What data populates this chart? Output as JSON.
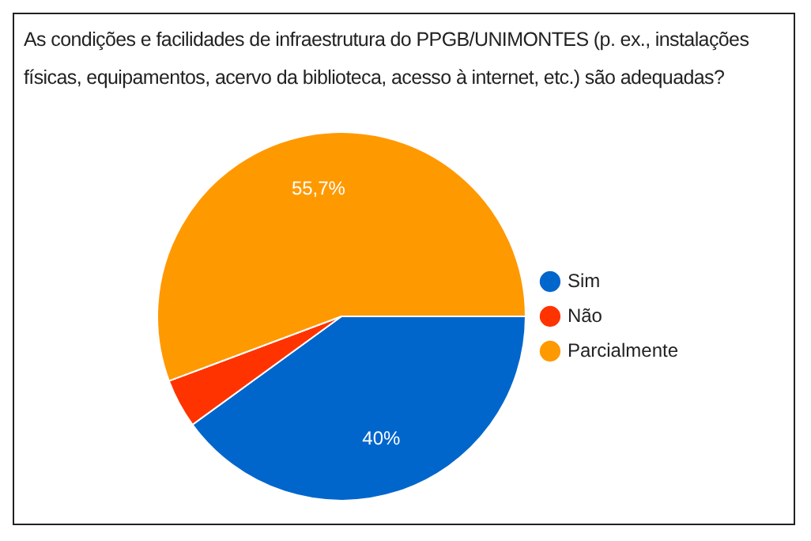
{
  "chart_data": {
    "type": "pie",
    "title": "As condições e facilidades de infraestrutura do PPGB/UNIMONTES (p. ex., instalações físicas, equipamentos, acervo da biblioteca, acesso à internet, etc.) são adequadas?",
    "categories": [
      "Sim",
      "Não",
      "Parcialmente"
    ],
    "values": [
      40,
      4.3,
      55.7
    ],
    "colors": [
      "#0066cc",
      "#ff3300",
      "#ff9900"
    ],
    "value_labels": [
      "40%",
      null,
      "55,7%"
    ],
    "legend": "right"
  }
}
